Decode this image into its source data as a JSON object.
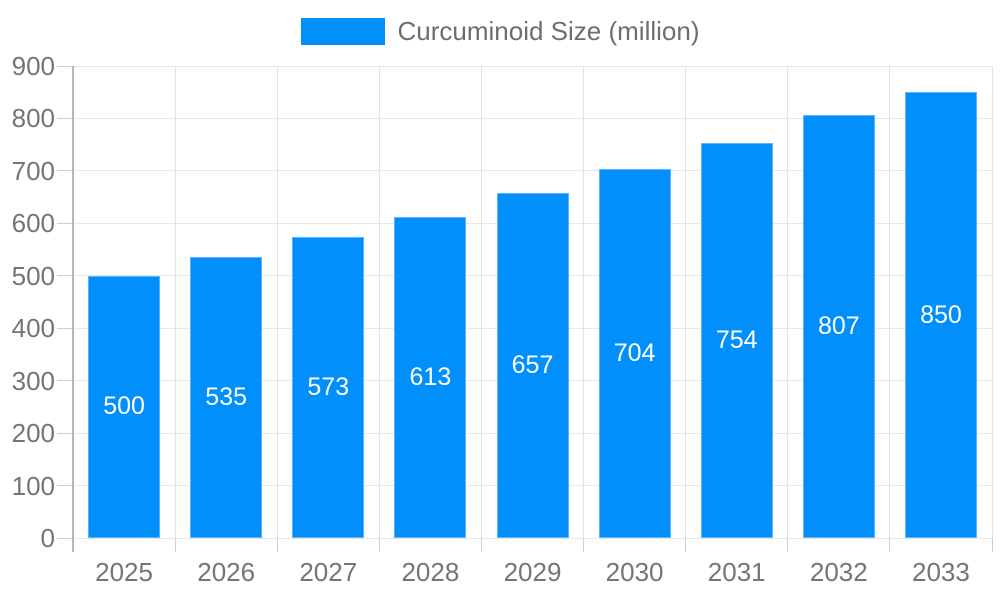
{
  "legend": {
    "items": [
      {
        "label": "Curcuminoid Size (million)",
        "color": "#008FFB"
      }
    ],
    "position": "top"
  },
  "chart_data": {
    "type": "bar",
    "title": "",
    "xlabel": "",
    "ylabel": "",
    "categories": [
      "2025",
      "2026",
      "2027",
      "2028",
      "2029",
      "2030",
      "2031",
      "2032",
      "2033"
    ],
    "series": [
      {
        "name": "Curcuminoid Size (million)",
        "color": "#008FFB",
        "values": [
          500,
          535,
          573,
          613,
          657,
          704,
          754,
          807,
          850
        ]
      }
    ],
    "bar_value_labels": [
      "500",
      "535",
      "573",
      "613",
      "657",
      "704",
      "754",
      "807",
      "850"
    ],
    "ylim": [
      0,
      900
    ],
    "ytick_step": 100,
    "ytick_labels": [
      "0",
      "100",
      "200",
      "300",
      "400",
      "500",
      "600",
      "700",
      "800",
      "900"
    ],
    "grid": true,
    "legend_position": "top"
  },
  "colors": {
    "bar": "#008FFB",
    "bar_label_text": "#FFFFFF",
    "axis_text": "#757575",
    "legend_text": "#6E6E6E",
    "gridline_horizontal": "#E8E8E8",
    "gridline_vertical": "#E3E3E3",
    "tick": "#CFCFCF",
    "axis_line": "#B6B6B6",
    "background": "#FFFFFF"
  }
}
